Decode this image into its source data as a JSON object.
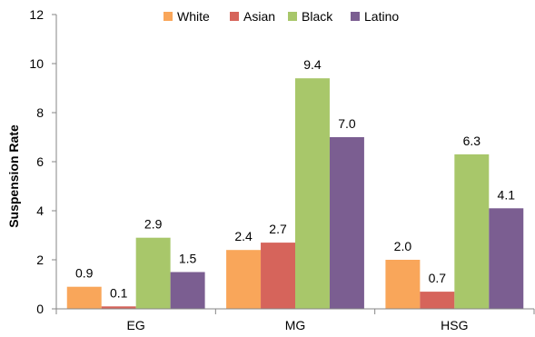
{
  "chart_data": {
    "type": "bar",
    "title": "",
    "xlabel": "",
    "ylabel": "Suspension Rate",
    "ylim": [
      0,
      12
    ],
    "yticks": [
      0,
      2,
      4,
      6,
      8,
      10,
      12
    ],
    "grid": false,
    "legend_position": "top",
    "categories": [
      "EG",
      "MG",
      "HSG"
    ],
    "series": [
      {
        "name": "White",
        "color": "#F9A65A",
        "values": [
          0.9,
          2.4,
          2.0
        ],
        "labels": [
          "0.9",
          "2.4",
          "2.0"
        ]
      },
      {
        "name": "Asian",
        "color": "#D6645B",
        "values": [
          0.1,
          2.7,
          0.7
        ],
        "labels": [
          "0.1",
          "2.7",
          "0.7"
        ]
      },
      {
        "name": "Black",
        "color": "#A8C76A",
        "values": [
          2.9,
          9.4,
          6.3
        ],
        "labels": [
          "2.9",
          "9.4",
          "6.3"
        ]
      },
      {
        "name": "Latino",
        "color": "#7B5E91",
        "values": [
          1.5,
          7.0,
          4.1
        ],
        "labels": [
          "1.5",
          "7.0",
          "4.1"
        ]
      }
    ]
  }
}
